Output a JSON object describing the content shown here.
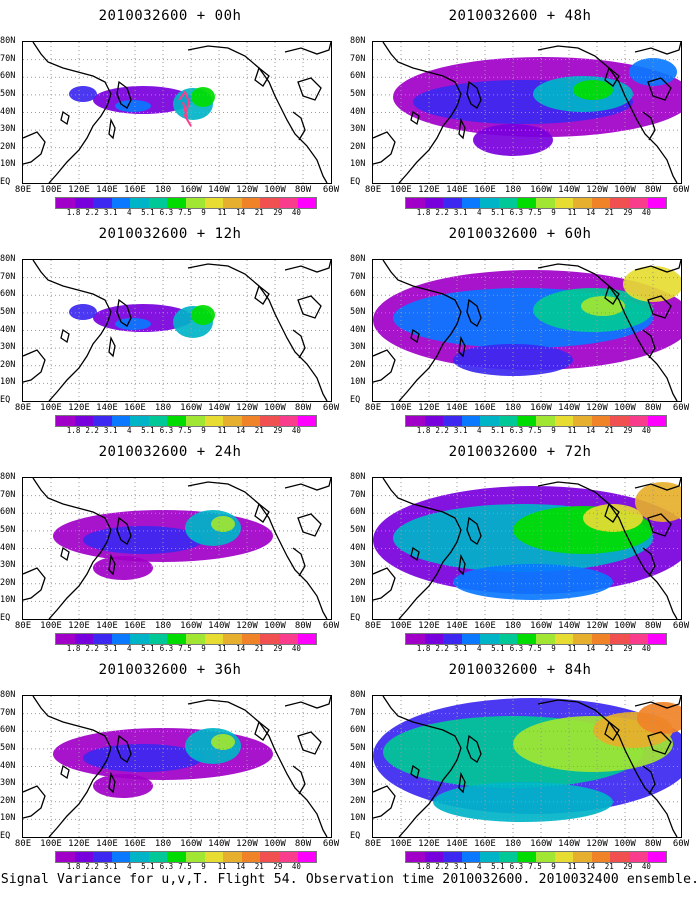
{
  "caption": "Signal Variance for u,v,T. Flight 54. Observation time 2010032600. 2010032400 ensemble.",
  "lat_labels": [
    "80N",
    "70N",
    "60N",
    "50N",
    "40N",
    "30N",
    "20N",
    "10N",
    "EQ"
  ],
  "lon_labels": [
    "80E",
    "100E",
    "120E",
    "140E",
    "160E",
    "180",
    "160W",
    "140W",
    "120W",
    "100W",
    "80W",
    "60W"
  ],
  "colorbar": {
    "labels": [
      "1.8",
      "2.2",
      "3.1",
      "4",
      "5.1",
      "6.3",
      "7.5",
      "9",
      "11",
      "14",
      "21",
      "29",
      "40"
    ],
    "colors": [
      "#a000c8",
      "#7800dc",
      "#3c28f0",
      "#0a78ff",
      "#00b4c8",
      "#00c896",
      "#00dc00",
      "#a0e632",
      "#e6dc32",
      "#e6af2d",
      "#f08228",
      "#f05050",
      "#fa3c8c",
      "#ff00ff"
    ]
  },
  "panels": [
    {
      "id": "p00",
      "title": "2010032600 + 00h",
      "lead_hours": 0,
      "level": 1,
      "marker": true
    },
    {
      "id": "p48",
      "title": "2010032600 + 48h",
      "lead_hours": 48,
      "level": 3,
      "marker": false
    },
    {
      "id": "p12",
      "title": "2010032600 + 12h",
      "lead_hours": 12,
      "level": 1,
      "marker": false
    },
    {
      "id": "p60",
      "title": "2010032600 + 60h",
      "lead_hours": 60,
      "level": 4,
      "marker": false
    },
    {
      "id": "p24",
      "title": "2010032600 + 24h",
      "lead_hours": 24,
      "level": 2,
      "marker": false
    },
    {
      "id": "p72",
      "title": "2010032600 + 72h",
      "lead_hours": 72,
      "level": 5,
      "marker": false
    },
    {
      "id": "p36",
      "title": "2010032600 + 36h",
      "lead_hours": 36,
      "level": 2,
      "marker": false
    },
    {
      "id": "p84",
      "title": "2010032600 + 84h",
      "lead_hours": 84,
      "level": 6,
      "marker": false
    }
  ]
}
